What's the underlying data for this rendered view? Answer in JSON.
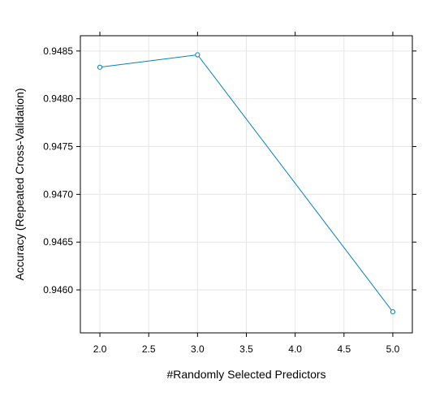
{
  "chart_data": {
    "type": "line",
    "xlabel": "#Randomly Selected Predictors",
    "ylabel": "Accuracy (Repeated Cross-Validation)",
    "x": [
      2,
      3,
      5
    ],
    "series": [
      {
        "values": [
          0.94833,
          0.94846,
          0.94577
        ]
      }
    ],
    "xlim": [
      1.8,
      5.2
    ],
    "ylim": [
      0.94555,
      0.94866
    ],
    "xticks": [
      2.0,
      2.5,
      3.0,
      3.5,
      4.0,
      4.5,
      5.0
    ],
    "xtick_labels": [
      "2.0",
      "2.5",
      "3.0",
      "3.5",
      "4.0",
      "4.5",
      "5.0"
    ],
    "yticks": [
      0.946,
      0.9465,
      0.947,
      0.9475,
      0.948,
      0.9485
    ],
    "ytick_labels": [
      "0.9460",
      "0.9465",
      "0.9470",
      "0.9475",
      "0.9480",
      "0.9485"
    ],
    "grid": true,
    "marker": "open-circle",
    "line_color": "#0080c0",
    "grid_color": "#e6e6e6"
  }
}
